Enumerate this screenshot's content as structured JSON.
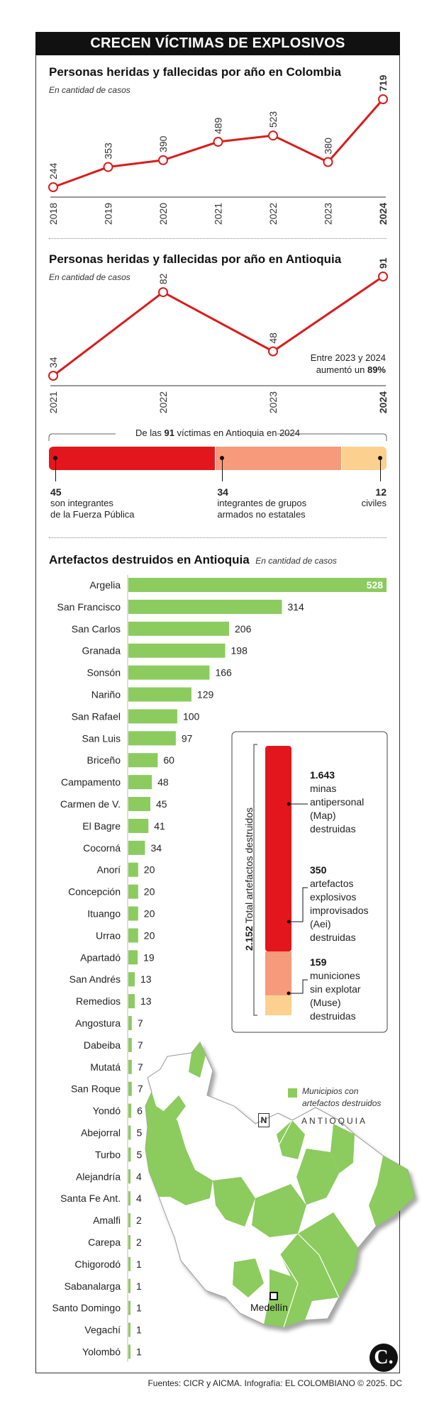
{
  "title": "CRECEN VÍCTIMAS DE EXPLOSIVOS",
  "colombia": {
    "title": "Personas heridas y fallecidas por año en Colombia",
    "subtitle": "En cantidad de casos"
  },
  "antioquia": {
    "title": "Personas heridas y fallecidas por año en Antioquia",
    "subtitle": "En cantidad de casos",
    "note_line1": "Entre 2023 y 2024",
    "note_line2": "aumentó un ",
    "note_pct": "89%"
  },
  "victims": {
    "header_pre": "De las ",
    "header_num": "91",
    "header_post": " víctimas en Antioquia en 2024",
    "colors": {
      "public_force": "#e3161d",
      "armed_groups": "#f79a7c",
      "civilians": "#fcd18f"
    }
  },
  "artefactos": {
    "title": "Artefactos destruidos en Antioquia",
    "subtitle": "En cantidad de casos",
    "bar_color": "#8ccb5e"
  },
  "total_box": {
    "label_num": "2.152",
    "label_text": " Total artefactos destruidos",
    "items": [
      {
        "num": "1.643",
        "text": [
          "minas",
          "antipersonal",
          "(Map)",
          "destruidas"
        ],
        "color": "#e3161d",
        "value": 1643
      },
      {
        "num": "350",
        "text": [
          "artefactos",
          "explosivos",
          "improvisados",
          "(Aei)",
          "destruidas"
        ],
        "color": "#f79a7c",
        "value": 350
      },
      {
        "num": "159",
        "text": [
          "municiones",
          "sin explotar",
          "(Muse)",
          "destruidas"
        ],
        "color": "#fcd18f",
        "value": 159
      }
    ]
  },
  "map": {
    "legend": "Municipios con",
    "legend2": "artefactos destruidos",
    "region_label": "ANTIOQUIA",
    "north": "N",
    "city": "Medellín",
    "land_color": "#ffffff",
    "highlight_color": "#8ccb5e"
  },
  "footer": {
    "source": "Fuentes: CICR y AICMA. Infografía: EL COLOMBIANO © 2025. DC",
    "logo": "C."
  },
  "chart_data": [
    {
      "type": "line",
      "title": "Personas heridas y fallecidas por año en Colombia",
      "subtitle": "En cantidad de casos",
      "x": [
        "2018",
        "2019",
        "2020",
        "2021",
        "2022",
        "2023",
        "2024"
      ],
      "series": [
        {
          "values": [
            244,
            353,
            390,
            489,
            523,
            380,
            719
          ]
        }
      ],
      "data_labels": [
        "244",
        "353",
        "390",
        "489",
        "523",
        "380",
        "719"
      ],
      "color": "#d91c1c"
    },
    {
      "type": "line",
      "title": "Personas heridas y fallecidas por año en Antioquia",
      "subtitle": "En cantidad de casos",
      "x": [
        "2021",
        "2022",
        "2023",
        "2024"
      ],
      "series": [
        {
          "values": [
            34,
            82,
            48,
            91
          ]
        }
      ],
      "data_labels": [
        "34",
        "82",
        "48",
        "91"
      ],
      "color": "#d91c1c"
    },
    {
      "type": "bar",
      "stacked": true,
      "categories": [
        "son integrantes de la Fuerza Pública",
        "integrantes de grupos armados no estatales",
        "civiles"
      ],
      "label_lines": [
        [
          "son integrantes",
          "de la Fuerza Pública"
        ],
        [
          "integrantes de grupos",
          "armados no estatales"
        ],
        [
          "civiles"
        ]
      ],
      "values": [
        45,
        34,
        12
      ]
    },
    {
      "type": "bar",
      "orientation": "horizontal",
      "title": "Artefactos destruidos en Antioquia",
      "subtitle": "En cantidad de casos",
      "categories": [
        "Argelia",
        "San Francisco",
        "San Carlos",
        "Granada",
        "Sonsón",
        "Nariño",
        "San Rafael",
        "San Luis",
        "Briceño",
        "Campamento",
        "Carmen de V.",
        "El Bagre",
        "Cocorná",
        "Anorí",
        "Concepción",
        "Ituango",
        "Urrao",
        "Apartadó",
        "San Andrés",
        "Remedios",
        "Angostura",
        "Dabeiba",
        "Mutatá",
        "San Roque",
        "Yondó",
        "Abejorral",
        "Turbo",
        "Alejandría",
        "Santa Fe Ant.",
        "Amalfi",
        "Carepa",
        "Chigorodó",
        "Sabanalarga",
        "Santo Domingo",
        "Vegachí",
        "Yolombó"
      ],
      "values": [
        528,
        314,
        206,
        198,
        166,
        129,
        100,
        97,
        60,
        48,
        45,
        41,
        34,
        20,
        20,
        20,
        20,
        19,
        13,
        13,
        7,
        7,
        7,
        7,
        6,
        5,
        5,
        4,
        4,
        2,
        2,
        1,
        1,
        1,
        1,
        1
      ]
    },
    {
      "type": "bar",
      "stacked": true,
      "title": "Total artefactos destruidos",
      "total": "2.152",
      "categories": [
        "minas antipersonal (Map) destruidas",
        "artefactos explosivos improvisados (Aei) destruidas",
        "municiones sin explotar (Muse) destruidas"
      ],
      "values": [
        1643,
        350,
        159
      ]
    }
  ]
}
